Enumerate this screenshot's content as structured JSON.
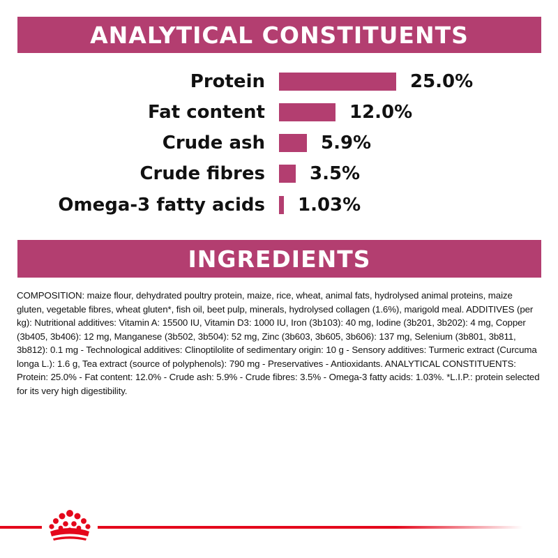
{
  "analytical": {
    "title": "ANALYTICAL CONSTITUENTS",
    "rows": [
      {
        "label": "Protein",
        "value": "25.0%",
        "amount": 25.0
      },
      {
        "label": "Fat content",
        "value": "12.0%",
        "amount": 12.0
      },
      {
        "label": "Crude ash",
        "value": "5.9%",
        "amount": 5.9
      },
      {
        "label": "Crude fibres",
        "value": "3.5%",
        "amount": 3.5
      },
      {
        "label": "Omega-3 fatty acids",
        "value": "1.03%",
        "amount": 1.03
      }
    ]
  },
  "ingredients": {
    "title": "INGREDIENTS",
    "composition": "COMPOSITION: maize flour, dehydrated poultry protein, maize, rice, wheat, animal fats, hydrolysed animal proteins, maize gluten, vegetable fibres, wheat gluten*, fish oil, beet pulp, minerals, hydrolysed collagen (1.6%), marigold meal. ADDITIVES (per kg): Nutritional additives: Vitamin A: 15500 IU, Vitamin D3: 1000 IU, Iron (3b103): 40 mg, Iodine (3b201, 3b202): 4 mg, Copper (3b405, 3b406): 12 mg, Manganese (3b502, 3b504): 52 mg, Zinc (3b603, 3b605, 3b606): 137 mg, Selenium (3b801, 3b811, 3b812): 0.1 mg - Technological additives: Clinoptilolite of sedimentary origin: 10 g - Sensory additives: Turmeric extract (Curcuma longa L.): 1.6 g, Tea extract (source of polyphenols): 790 mg - Preservatives - Antioxidants. ANALYTICAL CONSTITUENTS: Protein: 25.0% - Fat content: 12.0% - Crude ash: 5.9% - Crude fibres: 3.5% - Omega-3 fatty acids: 1.03%. *L.I.P.: protein selected for its very high digestibility."
  },
  "footer": {
    "logo_icon": "crown-icon",
    "accent_color": "#e4071b"
  },
  "colors": {
    "banner": "#b33e70",
    "bar": "#b33e70"
  }
}
